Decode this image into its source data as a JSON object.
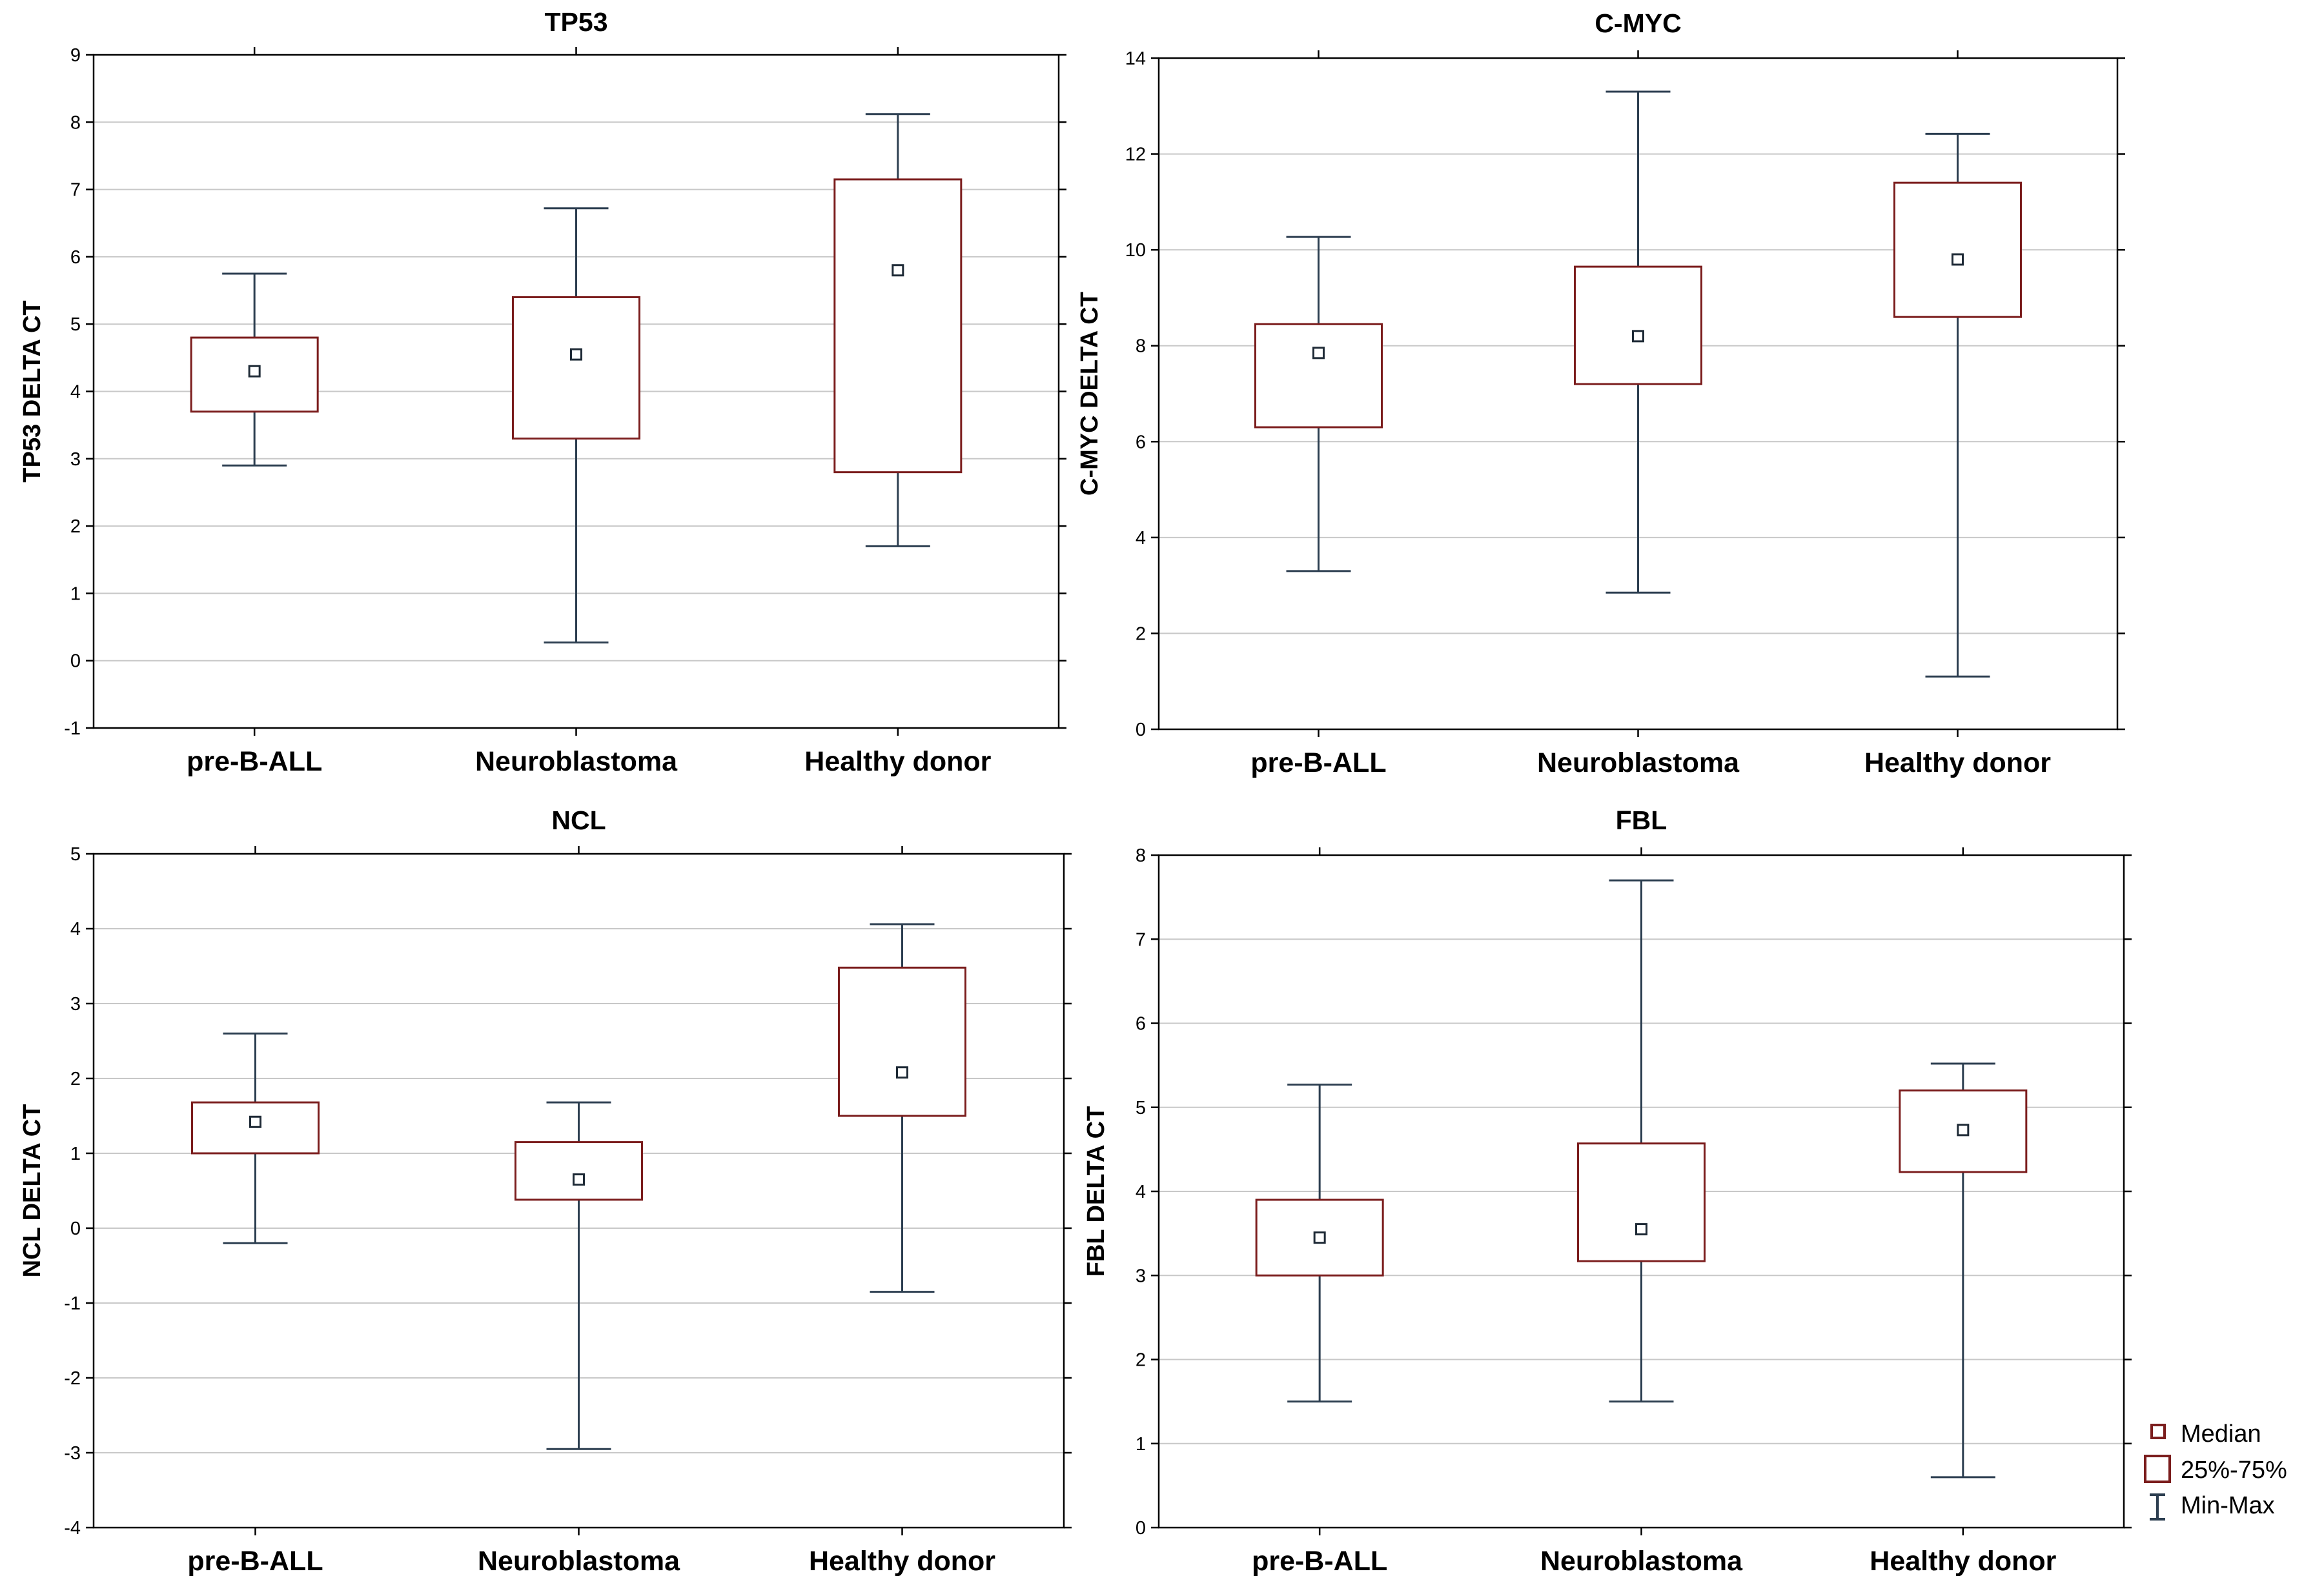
{
  "colors": {
    "box": "#7b1d1d",
    "whisker": "#2c3e50",
    "grid": "#c8c8c8",
    "frame": "#000000"
  },
  "legend": {
    "median": "Median",
    "iqr": "25%-75%",
    "range": "Min-Max"
  },
  "chart_data": [
    {
      "type": "boxplot",
      "title": "TP53",
      "ylabel": "TP53 DELTA CT",
      "ylim": [
        -1,
        9
      ],
      "yticks": [
        -1,
        0,
        1,
        2,
        3,
        4,
        5,
        6,
        7,
        8,
        9
      ],
      "categories": [
        "pre-B-ALL",
        "Neuroblastoma",
        "Healthy donor"
      ],
      "series": [
        {
          "name": "pre-B-ALL",
          "min": 2.9,
          "q1": 3.7,
          "median": 4.3,
          "q3": 4.8,
          "max": 5.75
        },
        {
          "name": "Neuroblastoma",
          "min": 0.27,
          "q1": 3.3,
          "median": 4.55,
          "q3": 5.4,
          "max": 6.72
        },
        {
          "name": "Healthy donor",
          "min": 1.7,
          "q1": 2.8,
          "median": 5.8,
          "q3": 7.15,
          "max": 8.12
        }
      ]
    },
    {
      "type": "boxplot",
      "title": "C-MYC",
      "ylabel": "C-MYC DELTA CT",
      "ylim": [
        0,
        14
      ],
      "yticks": [
        0,
        2,
        4,
        6,
        8,
        10,
        12,
        14
      ],
      "categories": [
        "pre-B-ALL",
        "Neuroblastoma",
        "Healthy donor"
      ],
      "series": [
        {
          "name": "pre-B-ALL",
          "min": 3.3,
          "q1": 6.3,
          "median": 7.85,
          "q3": 8.45,
          "max": 10.27
        },
        {
          "name": "Neuroblastoma",
          "min": 2.85,
          "q1": 7.2,
          "median": 8.2,
          "q3": 9.65,
          "max": 13.3
        },
        {
          "name": "Healthy donor",
          "min": 1.1,
          "q1": 8.6,
          "median": 9.8,
          "q3": 11.4,
          "max": 12.42
        }
      ]
    },
    {
      "type": "boxplot",
      "title": "NCL",
      "ylabel": "NCL DELTA CT",
      "ylim": [
        -4,
        5
      ],
      "yticks": [
        -4,
        -3,
        -2,
        -1,
        0,
        1,
        2,
        3,
        4,
        5
      ],
      "categories": [
        "pre-B-ALL",
        "Neuroblastoma",
        "Healthy donor"
      ],
      "series": [
        {
          "name": "pre-B-ALL",
          "min": -0.2,
          "q1": 1.0,
          "median": 1.42,
          "q3": 1.68,
          "max": 2.6
        },
        {
          "name": "Neuroblastoma",
          "min": -2.95,
          "q1": 0.38,
          "median": 0.65,
          "q3": 1.15,
          "max": 1.68
        },
        {
          "name": "Healthy donor",
          "min": -0.85,
          "q1": 1.5,
          "median": 2.08,
          "q3": 3.48,
          "max": 4.06
        }
      ]
    },
    {
      "type": "boxplot",
      "title": "FBL",
      "ylabel": "FBL DELTA CT",
      "ylim": [
        0,
        8
      ],
      "yticks": [
        0,
        1,
        2,
        3,
        4,
        5,
        6,
        7,
        8
      ],
      "categories": [
        "pre-B-ALL",
        "Neuroblastoma",
        "Healthy donor"
      ],
      "series": [
        {
          "name": "pre-B-ALL",
          "min": 1.5,
          "q1": 3.0,
          "median": 3.45,
          "q3": 3.9,
          "max": 5.27
        },
        {
          "name": "Neuroblastoma",
          "min": 1.5,
          "q1": 3.17,
          "median": 3.55,
          "q3": 4.57,
          "max": 7.7
        },
        {
          "name": "Healthy donor",
          "min": 0.6,
          "q1": 4.23,
          "median": 4.73,
          "q3": 5.2,
          "max": 5.52
        }
      ]
    }
  ]
}
